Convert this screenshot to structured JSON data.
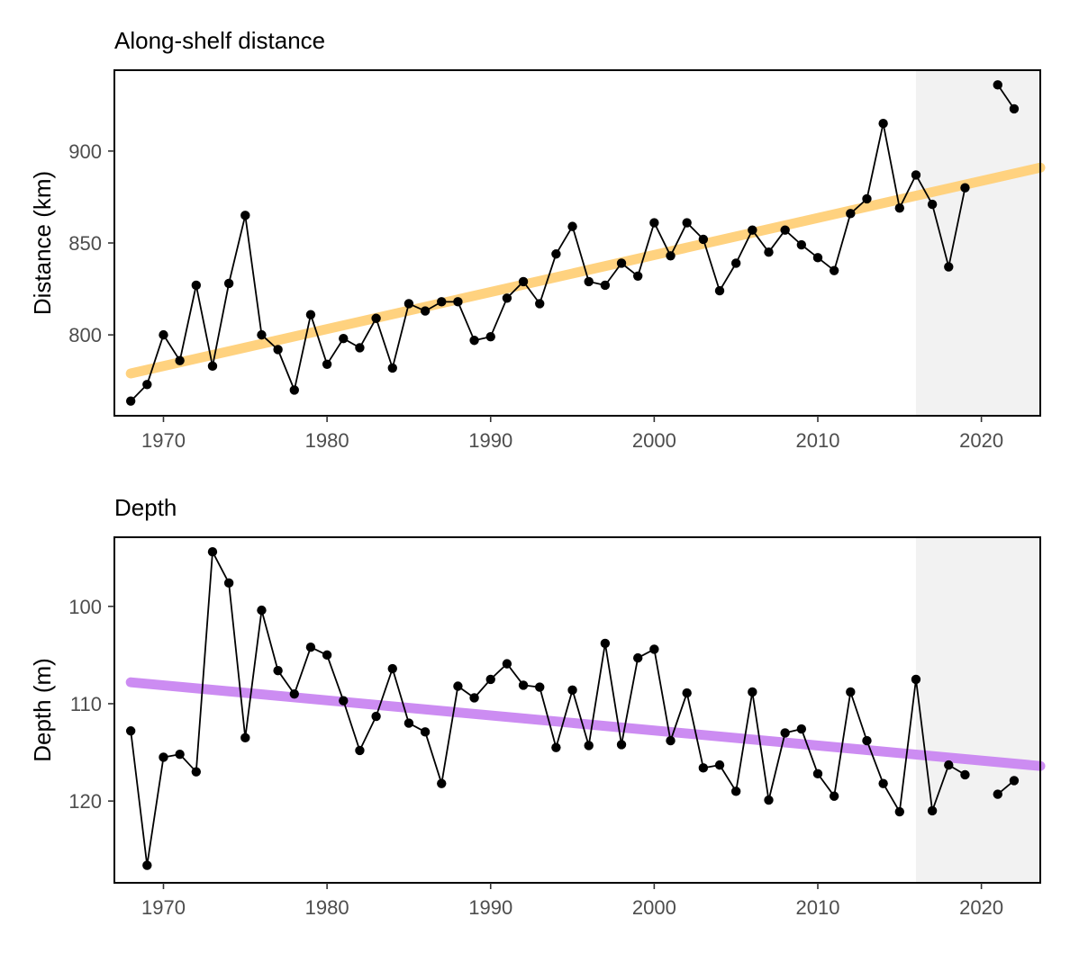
{
  "colors": {
    "distance_trend": "#FFD27F",
    "depth_trend": "#CC8CF2",
    "shade": "#F2F2F2",
    "points": "#000000",
    "tick_text": "#4d4d4d"
  },
  "chart_data": [
    {
      "type": "line",
      "title": "Along-shelf distance",
      "xlabel": "",
      "ylabel": "Distance (km)",
      "xlim": [
        1967,
        2023.6
      ],
      "ylim": [
        756,
        944
      ],
      "y_reversed": false,
      "x_ticks": [
        1970,
        1980,
        1990,
        2000,
        2010,
        2020
      ],
      "y_ticks": [
        800,
        850,
        900
      ],
      "grid": false,
      "legend": "none",
      "shaded_region": [
        2016,
        2023.6
      ],
      "series": [
        {
          "points": [
            [
              1968,
              764
            ],
            [
              1969,
              773
            ],
            [
              1970,
              800
            ],
            [
              1971,
              786
            ],
            [
              1972,
              827
            ],
            [
              1973,
              783
            ],
            [
              1974,
              828
            ],
            [
              1975,
              865
            ],
            [
              1976,
              800
            ],
            [
              1977,
              792
            ],
            [
              1978,
              770
            ],
            [
              1979,
              811
            ],
            [
              1980,
              784
            ],
            [
              1981,
              798
            ],
            [
              1982,
              793
            ],
            [
              1983,
              809
            ],
            [
              1984,
              782
            ],
            [
              1985,
              817
            ],
            [
              1986,
              813
            ],
            [
              1987,
              818
            ],
            [
              1988,
              818
            ],
            [
              1989,
              797
            ],
            [
              1990,
              799
            ],
            [
              1991,
              820
            ],
            [
              1992,
              829
            ],
            [
              1993,
              817
            ],
            [
              1994,
              844
            ],
            [
              1995,
              859
            ],
            [
              1996,
              829
            ],
            [
              1997,
              827
            ],
            [
              1998,
              839
            ],
            [
              1999,
              832
            ],
            [
              2000,
              861
            ],
            [
              2001,
              843
            ],
            [
              2002,
              861
            ],
            [
              2003,
              852
            ],
            [
              2004,
              824
            ],
            [
              2005,
              839
            ],
            [
              2006,
              857
            ],
            [
              2007,
              845
            ],
            [
              2008,
              857
            ],
            [
              2009,
              849
            ],
            [
              2010,
              842
            ],
            [
              2011,
              835
            ],
            [
              2012,
              866
            ],
            [
              2013,
              874
            ],
            [
              2014,
              915
            ],
            [
              2015,
              869
            ],
            [
              2016,
              887
            ],
            [
              2017,
              871
            ],
            [
              2018,
              837
            ],
            [
              2019,
              880
            ],
            [
              2020,
              null
            ],
            [
              2021,
              936
            ],
            [
              2022,
              923
            ]
          ]
        }
      ],
      "trend": {
        "x": [
          1968,
          2023.6
        ],
        "y": [
          779,
          891
        ]
      }
    },
    {
      "type": "line",
      "title": "Depth",
      "xlabel": "",
      "ylabel": "Depth (m)",
      "xlim": [
        1967,
        2023.6
      ],
      "ylim": [
        128.4,
        92.9
      ],
      "y_reversed": true,
      "x_ticks": [
        1970,
        1980,
        1990,
        2000,
        2010,
        2020
      ],
      "y_ticks": [
        100,
        110,
        120
      ],
      "grid": false,
      "legend": "none",
      "shaded_region": [
        2016,
        2023.6
      ],
      "series": [
        {
          "points": [
            [
              1968,
              112.8
            ],
            [
              1969,
              126.6
            ],
            [
              1970,
              115.5
            ],
            [
              1971,
              115.2
            ],
            [
              1972,
              117.0
            ],
            [
              1973,
              94.4
            ],
            [
              1974,
              97.6
            ],
            [
              1975,
              113.5
            ],
            [
              1976,
              100.4
            ],
            [
              1977,
              106.6
            ],
            [
              1978,
              109.0
            ],
            [
              1979,
              104.2
            ],
            [
              1980,
              105.0
            ],
            [
              1981,
              109.7
            ],
            [
              1982,
              114.8
            ],
            [
              1983,
              111.3
            ],
            [
              1984,
              106.4
            ],
            [
              1985,
              112.0
            ],
            [
              1986,
              112.9
            ],
            [
              1987,
              118.2
            ],
            [
              1988,
              108.2
            ],
            [
              1989,
              109.4
            ],
            [
              1990,
              107.5
            ],
            [
              1991,
              105.9
            ],
            [
              1992,
              108.1
            ],
            [
              1993,
              108.3
            ],
            [
              1994,
              114.5
            ],
            [
              1995,
              108.6
            ],
            [
              1996,
              114.3
            ],
            [
              1997,
              103.8
            ],
            [
              1998,
              114.2
            ],
            [
              1999,
              105.3
            ],
            [
              2000,
              104.4
            ],
            [
              2001,
              113.8
            ],
            [
              2002,
              108.9
            ],
            [
              2003,
              116.6
            ],
            [
              2004,
              116.3
            ],
            [
              2005,
              119.0
            ],
            [
              2006,
              108.8
            ],
            [
              2007,
              119.9
            ],
            [
              2008,
              113.0
            ],
            [
              2009,
              112.6
            ],
            [
              2010,
              117.2
            ],
            [
              2011,
              119.5
            ],
            [
              2012,
              108.8
            ],
            [
              2013,
              113.8
            ],
            [
              2014,
              118.2
            ],
            [
              2015,
              121.1
            ],
            [
              2016,
              107.5
            ],
            [
              2017,
              121.0
            ],
            [
              2018,
              116.3
            ],
            [
              2019,
              117.3
            ],
            [
              2020,
              null
            ],
            [
              2021,
              119.3
            ],
            [
              2022,
              117.9
            ]
          ]
        }
      ],
      "trend": {
        "x": [
          1968,
          2023.6
        ],
        "y": [
          107.8,
          116.4
        ]
      }
    }
  ]
}
